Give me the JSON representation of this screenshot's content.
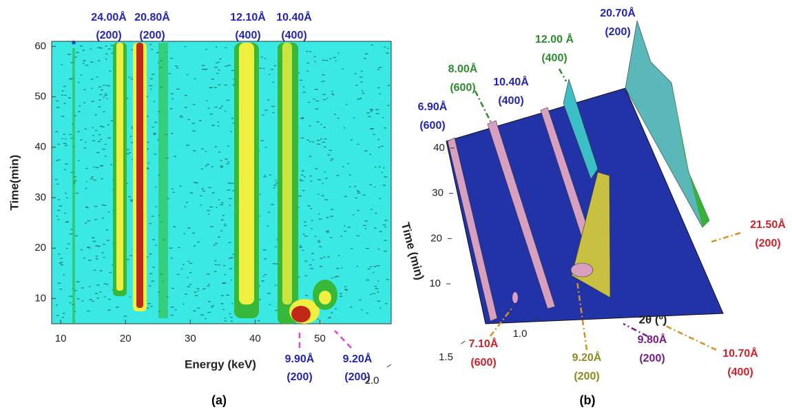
{
  "panels": [
    {
      "label": "(a)",
      "x_label": "Energy (keV)",
      "y_label": "Time(min)",
      "xlim": [
        8.6,
        61
      ],
      "ylim": [
        5,
        61
      ],
      "xticks": [
        10,
        20,
        30,
        40,
        50
      ],
      "yticks": [
        10,
        20,
        30,
        40,
        50,
        60
      ],
      "marker": "*",
      "annotations": [
        {
          "text": "24.00Å",
          "sub": "(200)",
          "color": "#2424b4"
        },
        {
          "text": "20.80Å",
          "sub": "(200)",
          "color": "#2424b4"
        },
        {
          "text": "12.10Å",
          "sub": "(400)",
          "color": "#2424b4"
        },
        {
          "text": "10.40Å",
          "sub": "(400)",
          "color": "#2424b4"
        },
        {
          "text": "9.90Å",
          "sub": "(200)",
          "color": "#2424b4"
        },
        {
          "text": "9.20Å",
          "sub": "(200)",
          "color": "#2424b4"
        }
      ]
    },
    {
      "label": "(b)",
      "x_label": "2θ (º)",
      "y_label": "Time (min)",
      "xticks": [
        {
          "value": 2,
          "label": "2.0"
        },
        1.5,
        {
          "value": 1,
          "label": "1.0"
        }
      ],
      "yticks": [
        10,
        20,
        30,
        40
      ],
      "annotations": [
        {
          "text": "6.90Å",
          "sub": "(600)",
          "color": "#2424b4"
        },
        {
          "text": "8.00Å",
          "sub": "(600)",
          "color": "#2e8b2e"
        },
        {
          "text": "10.40Å",
          "sub": "(400)",
          "color": "#2424b4"
        },
        {
          "text": "12.00 Å",
          "sub": "(400)",
          "color": "#2e8b2e"
        },
        {
          "text": "20.70Å",
          "sub": "(200)",
          "color": "#2424b4"
        },
        {
          "text": "21.50Å",
          "sub": "(200)",
          "color": "#d0202a"
        },
        {
          "text": "10.70Å",
          "sub": "(400)",
          "color": "#d0202a"
        },
        {
          "text": "9.80Å",
          "sub": "(200)",
          "color": "#7a1a8a"
        },
        {
          "text": "9.20Å",
          "sub": "(200)",
          "color": "#8b8b1e"
        },
        {
          "text": "7.10Å",
          "sub": "(600)",
          "color": "#d0202a"
        }
      ]
    }
  ]
}
